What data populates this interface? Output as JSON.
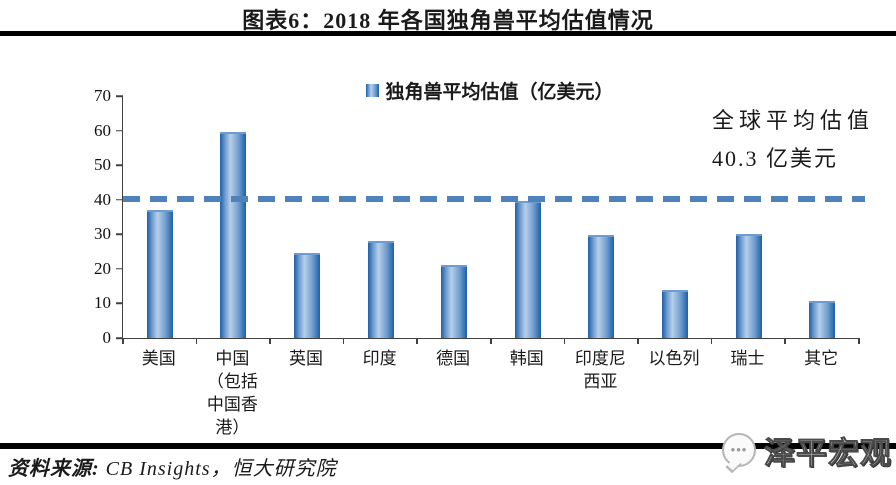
{
  "header": {
    "title": "图表6：2018 年各国独角兽平均估值情况"
  },
  "chart_data": {
    "type": "bar",
    "title": "图表6：2018 年各国独角兽平均估值情况",
    "legend": "独角兽平均估值（亿美元）",
    "legend_position": "top",
    "grid": false,
    "categories": [
      "美国",
      "中国（包括中国香港）",
      "英国",
      "印度",
      "德国",
      "韩国",
      "印度尼西亚",
      "以色列",
      "瑞士",
      "其它"
    ],
    "category_lines": [
      [
        "美国"
      ],
      [
        "中国",
        "（包括",
        "中国香",
        "港）"
      ],
      [
        "英国"
      ],
      [
        "印度"
      ],
      [
        "德国"
      ],
      [
        "韩国"
      ],
      [
        "印度尼",
        "西亚"
      ],
      [
        "以色列"
      ],
      [
        "瑞士"
      ],
      [
        "其它"
      ]
    ],
    "values": [
      37.0,
      59.6,
      24.7,
      28.1,
      21.0,
      39.5,
      29.9,
      13.8,
      30.1,
      10.7
    ],
    "xlabel": "",
    "ylabel": "",
    "ylim": [
      0,
      70
    ],
    "yticks": [
      0,
      10,
      20,
      30,
      40,
      50,
      60,
      70
    ],
    "average_line": {
      "value": 40.3,
      "label_line1": "全球平均估值",
      "label_line2": "40.3 亿美元"
    },
    "colors": {
      "bar_edge": "#1d5fa8",
      "bar_light": "#b7cfea",
      "bar_mid": "#6f9cce",
      "dashed_line": "#4f81bd",
      "axis": "#404040"
    }
  },
  "footer": {
    "source_prefix": "资料来源:",
    "source_rest": " CB Insights，恒大研究院",
    "watermark": "泽平宏观",
    "watermark_icon_dots": "•••"
  }
}
